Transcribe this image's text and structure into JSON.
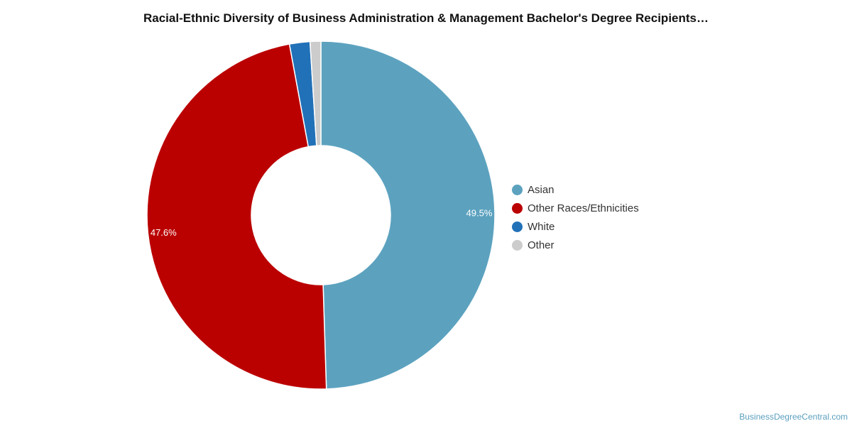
{
  "chart_data": {
    "type": "pie",
    "title": "Racial-Ethnic Diversity of Business Administration & Management Bachelor's Degree Recipients…",
    "donut": true,
    "legend_position": "right",
    "slices": [
      {
        "label": "Asian",
        "value": 49.5,
        "color": "#5ca2bf",
        "value_label": "49.5%"
      },
      {
        "label": "Other Races/Ethnicities",
        "value": 47.6,
        "color": "#bb0000",
        "value_label": "47.6%"
      },
      {
        "label": "White",
        "value": 1.9,
        "color": "#2171b8",
        "value_label": ""
      },
      {
        "label": "Other",
        "value": 1.0,
        "color": "#cccccc",
        "value_label": ""
      }
    ]
  },
  "footer": {
    "source": "BusinessDegreeCentral.com"
  }
}
